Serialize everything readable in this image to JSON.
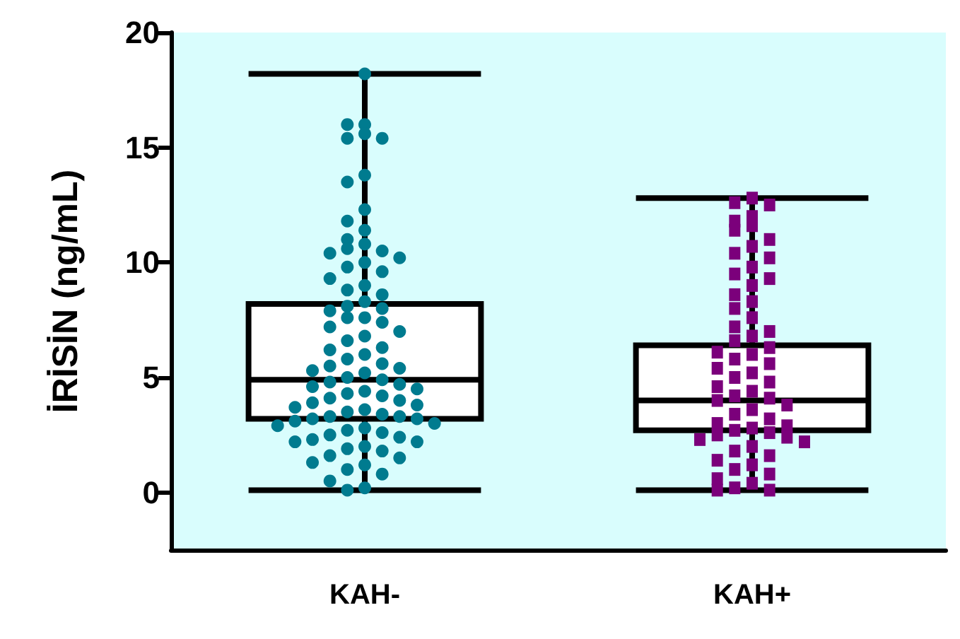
{
  "chart_data": {
    "type": "box",
    "ylabel": "İRİSİN (ng/mL)",
    "categories": [
      "KAH-",
      "KAH+"
    ],
    "boxes": [
      {
        "low": 0.1,
        "q1": 3.2,
        "median": 4.9,
        "q3": 8.2,
        "high": 18.2
      },
      {
        "low": 0.1,
        "q1": 2.7,
        "median": 4.0,
        "q3": 6.4,
        "high": 12.8
      }
    ],
    "series": [
      {
        "type": "scatter",
        "marker": "circle",
        "color": "#007b8f",
        "x": [
          "KAH-",
          "KAH-",
          "KAH-",
          "KAH-",
          "KAH-",
          "KAH-",
          "KAH-",
          "KAH-",
          "KAH-",
          "KAH-",
          "KAH-",
          "KAH-",
          "KAH-",
          "KAH-",
          "KAH-",
          "KAH-",
          "KAH-",
          "KAH-",
          "KAH-",
          "KAH-",
          "KAH-",
          "KAH-",
          "KAH-",
          "KAH-",
          "KAH-",
          "KAH-",
          "KAH-",
          "KAH-",
          "KAH-",
          "KAH-",
          "KAH-",
          "KAH-",
          "KAH-",
          "KAH-",
          "KAH-",
          "KAH-",
          "KAH-",
          "KAH-",
          "KAH-",
          "KAH-",
          "KAH-",
          "KAH-",
          "KAH-",
          "KAH-",
          "KAH-",
          "KAH-",
          "KAH-",
          "KAH-",
          "KAH-",
          "KAH-",
          "KAH-",
          "KAH-",
          "KAH-",
          "KAH-",
          "KAH-",
          "KAH-",
          "KAH-",
          "KAH-",
          "KAH-",
          "KAH-",
          "KAH-",
          "KAH-",
          "KAH-",
          "KAH-",
          "KAH-",
          "KAH-",
          "KAH-",
          "KAH-",
          "KAH-",
          "KAH-",
          "KAH-",
          "KAH-",
          "KAH-",
          "KAH-",
          "KAH-",
          "KAH-",
          "KAH-",
          "KAH-",
          "KAH-",
          "KAH-",
          "KAH-",
          "KAH-",
          "KAH-",
          "KAH-",
          "KAH-",
          "KAH-",
          "KAH-",
          "KAH-"
        ],
        "values": [
          18.2,
          16.0,
          16.0,
          15.6,
          15.4,
          15.4,
          13.8,
          13.5,
          12.3,
          11.8,
          11.4,
          11.0,
          10.8,
          10.6,
          10.5,
          10.4,
          10.2,
          10.0,
          9.8,
          9.6,
          9.3,
          9.0,
          8.8,
          8.6,
          8.3,
          8.1,
          8.0,
          7.9,
          7.6,
          7.6,
          7.4,
          7.2,
          7.0,
          6.8,
          6.6,
          6.3,
          6.2,
          6.0,
          5.8,
          5.6,
          5.5,
          5.4,
          5.3,
          5.2,
          5.0,
          4.9,
          4.8,
          4.7,
          4.6,
          4.5,
          4.4,
          4.3,
          4.2,
          4.1,
          4.0,
          3.9,
          3.8,
          3.7,
          3.6,
          3.5,
          3.4,
          3.3,
          3.3,
          3.2,
          3.2,
          3.1,
          3.0,
          2.9,
          2.8,
          2.7,
          2.6,
          2.5,
          2.4,
          2.3,
          2.2,
          2.2,
          2.0,
          1.9,
          1.8,
          1.6,
          1.5,
          1.3,
          1.2,
          1.0,
          0.8,
          0.5,
          0.2,
          0.1
        ]
      },
      {
        "type": "scatter",
        "marker": "square",
        "color": "#7b007b",
        "x": [
          "KAH+",
          "KAH+",
          "KAH+",
          "KAH+",
          "KAH+",
          "KAH+",
          "KAH+",
          "KAH+",
          "KAH+",
          "KAH+",
          "KAH+",
          "KAH+",
          "KAH+",
          "KAH+",
          "KAH+",
          "KAH+",
          "KAH+",
          "KAH+",
          "KAH+",
          "KAH+",
          "KAH+",
          "KAH+",
          "KAH+",
          "KAH+",
          "KAH+",
          "KAH+",
          "KAH+",
          "KAH+",
          "KAH+",
          "KAH+",
          "KAH+",
          "KAH+",
          "KAH+",
          "KAH+",
          "KAH+",
          "KAH+",
          "KAH+",
          "KAH+",
          "KAH+",
          "KAH+",
          "KAH+",
          "KAH+",
          "KAH+",
          "KAH+",
          "KAH+",
          "KAH+",
          "KAH+",
          "KAH+",
          "KAH+",
          "KAH+",
          "KAH+",
          "KAH+",
          "KAH+",
          "KAH+",
          "KAH+",
          "KAH+",
          "KAH+",
          "KAH+",
          "KAH+",
          "KAH+",
          "KAH+",
          "KAH+"
        ],
        "values": [
          12.8,
          12.6,
          12.5,
          12.0,
          11.8,
          11.6,
          11.4,
          11.0,
          10.7,
          10.4,
          10.2,
          9.8,
          9.5,
          9.3,
          9.0,
          8.6,
          8.3,
          8.0,
          7.6,
          7.2,
          7.0,
          6.8,
          6.6,
          6.3,
          6.1,
          6.0,
          5.8,
          5.6,
          5.4,
          5.2,
          5.0,
          4.8,
          4.6,
          4.4,
          4.2,
          4.1,
          4.0,
          3.8,
          3.6,
          3.4,
          3.2,
          3.0,
          2.9,
          2.8,
          2.7,
          2.6,
          2.5,
          2.4,
          2.3,
          2.2,
          2.0,
          1.8,
          1.6,
          1.4,
          1.2,
          1.0,
          0.8,
          0.6,
          0.4,
          0.2,
          0.1,
          0.1
        ]
      }
    ],
    "ylim": [
      -2.5,
      20
    ],
    "yticks": [
      0,
      5,
      10,
      15,
      20
    ],
    "grid": false
  }
}
